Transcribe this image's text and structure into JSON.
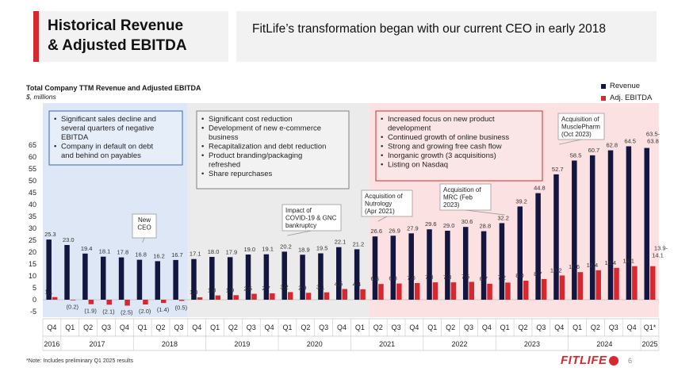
{
  "header": {
    "title_line1": "Historical Revenue",
    "title_line2": "& Adjusted EBITDA",
    "subtitle": "FitLife’s transformation began with our current CEO in early 2018"
  },
  "chart_title": "Total Company TTM Revenue and Adjusted EBITDA",
  "chart_subtitle": "$, millions",
  "footnote": "*Note: Includes preliminary Q1 2025 results",
  "page_number": "6",
  "logo_text": "FITLIFE",
  "colors": {
    "revenue": "#13163f",
    "ebitda": "#d7282f",
    "accent": "#d7282f"
  },
  "phase_boxes": [
    {
      "bullets": [
        "Significant sales decline and several quarters of negative EBITDA",
        "Company in default on debt and behind on payables"
      ]
    },
    {
      "bullets": [
        "Significant cost reduction",
        "Development of new e-commerce business",
        "Recapitalization and debt reduction",
        "Product branding/packaging refreshed",
        "Share repurchases"
      ]
    },
    {
      "bullets": [
        "Increased focus on new product development",
        "Continued growth of online business",
        "Strong and growing free cash flow",
        "Inorganic growth (3 acquisitions)",
        "Listing on Nasdaq"
      ]
    }
  ],
  "callouts": [
    {
      "text": [
        "New",
        "CEO"
      ]
    },
    {
      "text": [
        "Impact of",
        "COVID-19 & GNC",
        "bankruptcy"
      ]
    },
    {
      "text": [
        "Acquisition of",
        "Nutrology",
        "(Apr 2021)"
      ]
    },
    {
      "text": [
        "Acquisition of",
        "MRC (Feb",
        "2023)"
      ]
    },
    {
      "text": [
        "Acquisition of",
        "MusclePharm",
        "(Oct 2023)"
      ]
    }
  ],
  "chart_data": {
    "type": "bar",
    "categories": [
      "Q4",
      "Q1",
      "Q2",
      "Q3",
      "Q4",
      "Q1",
      "Q2",
      "Q3",
      "Q4",
      "Q1",
      "Q2",
      "Q3",
      "Q4",
      "Q1",
      "Q2",
      "Q3",
      "Q4",
      "Q1",
      "Q2",
      "Q3",
      "Q4",
      "Q1",
      "Q2",
      "Q3",
      "Q4",
      "Q1",
      "Q2",
      "Q3",
      "Q4",
      "Q1",
      "Q2",
      "Q3",
      "Q4",
      "Q1*"
    ],
    "years": [
      {
        "label": "2016",
        "span": [
          0,
          0
        ]
      },
      {
        "label": "2017",
        "span": [
          1,
          4
        ]
      },
      {
        "label": "2018",
        "span": [
          5,
          8
        ]
      },
      {
        "label": "2019",
        "span": [
          9,
          12
        ]
      },
      {
        "label": "2020",
        "span": [
          13,
          16
        ]
      },
      {
        "label": "2021",
        "span": [
          17,
          20
        ]
      },
      {
        "label": "2022",
        "span": [
          21,
          24
        ]
      },
      {
        "label": "2023",
        "span": [
          25,
          28
        ]
      },
      {
        "label": "2024",
        "span": [
          29,
          32
        ]
      },
      {
        "label": "2025",
        "span": [
          33,
          33
        ]
      }
    ],
    "series": [
      {
        "name": "Revenue",
        "values": [
          25.3,
          23.0,
          19.4,
          18.1,
          17.8,
          16.8,
          16.2,
          16.7,
          17.1,
          18.0,
          17.9,
          19.0,
          19.1,
          20.2,
          18.9,
          19.5,
          22.1,
          21.2,
          26.6,
          26.9,
          27.9,
          29.6,
          29.0,
          30.6,
          28.8,
          32.2,
          39.2,
          44.8,
          52.7,
          58.5,
          60.7,
          62.8,
          64.5,
          63.8
        ],
        "labels": [
          "25.3",
          "23.0",
          "19.4",
          "18.1",
          "17.8",
          "16.8",
          "16.2",
          "16.7",
          "17.1",
          "18.0",
          "17.9",
          "19.0",
          "19.1",
          "20.2",
          "18.9",
          "19.5",
          "22.1",
          "21.2",
          "26.6",
          "26.9",
          "27.9",
          "29.6",
          "29.0",
          "30.6",
          "28.8",
          "32.2",
          "39.2",
          "44.8",
          "52.7",
          "58.5",
          "60.7",
          "62.8",
          "64.5",
          "63.5-\n63.8"
        ]
      },
      {
        "name": "Adj. EBITDA",
        "values": [
          1.1,
          -0.2,
          -1.9,
          -2.1,
          -2.5,
          -2.0,
          -1.4,
          -0.5,
          1.0,
          1.8,
          1.9,
          2.5,
          2.7,
          3.2,
          2.9,
          3.1,
          4.5,
          4.4,
          6.6,
          6.8,
          7.0,
          7.3,
          7.3,
          7.5,
          6.7,
          7.2,
          8.0,
          8.7,
          10.2,
          11.6,
          12.4,
          13.4,
          14.1,
          14.1
        ],
        "labels": [
          "1.1",
          "(0.2)",
          "(1.9)",
          "(2.1)",
          "(2.5)",
          "(2.0)",
          "(1.4)",
          "(0.5)",
          "1.0",
          "1.8",
          "1.9",
          "2.5",
          "2.7",
          "3.2",
          "2.9",
          "3.1",
          "4.5",
          "4.4",
          "6.6",
          "6.8",
          "7.0",
          "7.3",
          "7.3",
          "7.5",
          "6.7",
          "7.2",
          "8.0",
          "8.7",
          "10.2",
          "11.6",
          "12.4",
          "13.4",
          "14.1",
          "13.9-\n14.1"
        ]
      }
    ],
    "y_ticks": [
      "65",
      "60",
      "55",
      "50",
      "45",
      "40",
      "35",
      "30",
      "25",
      "20",
      "15",
      "10",
      "5",
      "0",
      "-5"
    ],
    "ylim": [
      -5,
      65
    ],
    "legend": [
      "Revenue",
      "Adj. EBITDA"
    ],
    "legend_position": "top-right",
    "grid": false
  }
}
